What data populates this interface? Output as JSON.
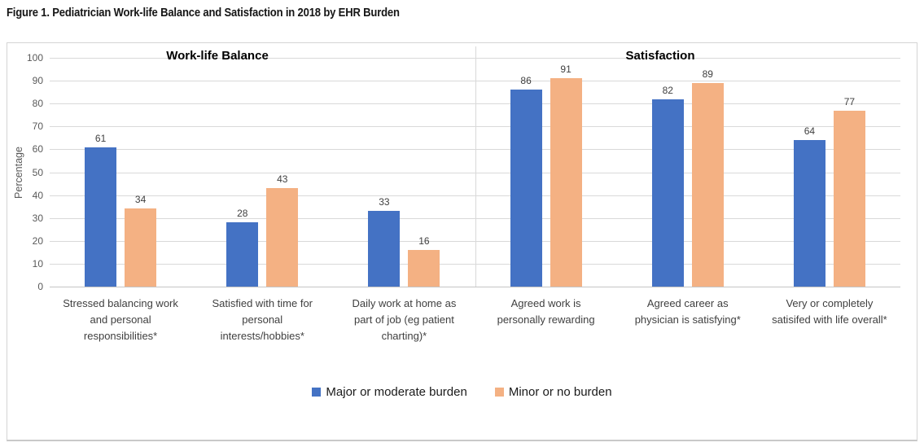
{
  "figure_title": "Figure 1. Pediatrician Work-life Balance and Satisfaction in 2018 by EHR Burden",
  "chart_data": {
    "type": "bar",
    "ylabel": "Percentage",
    "ylim": [
      0,
      100
    ],
    "ytick_interval": 10,
    "grid": "horizontal",
    "legend_position": "bottom",
    "sections": [
      {
        "label": "Work-life Balance",
        "category_indexes": [
          0,
          1,
          2
        ]
      },
      {
        "label": "Satisfaction",
        "category_indexes": [
          3,
          4,
          5
        ]
      }
    ],
    "categories": [
      "Stressed balancing work and personal responsibilities*",
      "Satisfied with time for personal interests/hobbies*",
      "Daily work at home as part of job (eg patient charting)*",
      "Agreed work is personally rewarding",
      "Agreed career as physician is satisfying*",
      "Very or completely satisifed with life overall*"
    ],
    "category_label_lines": [
      [
        "Stressed balancing work",
        "and personal",
        "responsibilities*"
      ],
      [
        "Satisfied with time for",
        "personal",
        "interests/hobbies*"
      ],
      [
        "Daily work at home as",
        "part of job (eg patient",
        "charting)*"
      ],
      [
        "Agreed work is",
        "personally rewarding"
      ],
      [
        "Agreed career as",
        "physician is satisfying*"
      ],
      [
        "Very or completely",
        "satisifed with life overall*"
      ]
    ],
    "series": [
      {
        "name": "Major or moderate burden",
        "color": "#4472C4",
        "values": [
          61,
          28,
          33,
          86,
          82,
          64
        ]
      },
      {
        "name": "Minor or no burden",
        "color": "#F4B183",
        "values": [
          34,
          43,
          16,
          91,
          89,
          77
        ]
      }
    ]
  },
  "colors": {
    "series_blue": "#4472C4",
    "series_orange": "#F4B183",
    "gridline": "#d9d9d9",
    "axis_line": "#c4c4c4",
    "tick_label": "#595959",
    "value_label": "#404040",
    "category_label": "#3f3f3f",
    "section_header": "#000000",
    "chart_border": "#d4d4d4"
  }
}
